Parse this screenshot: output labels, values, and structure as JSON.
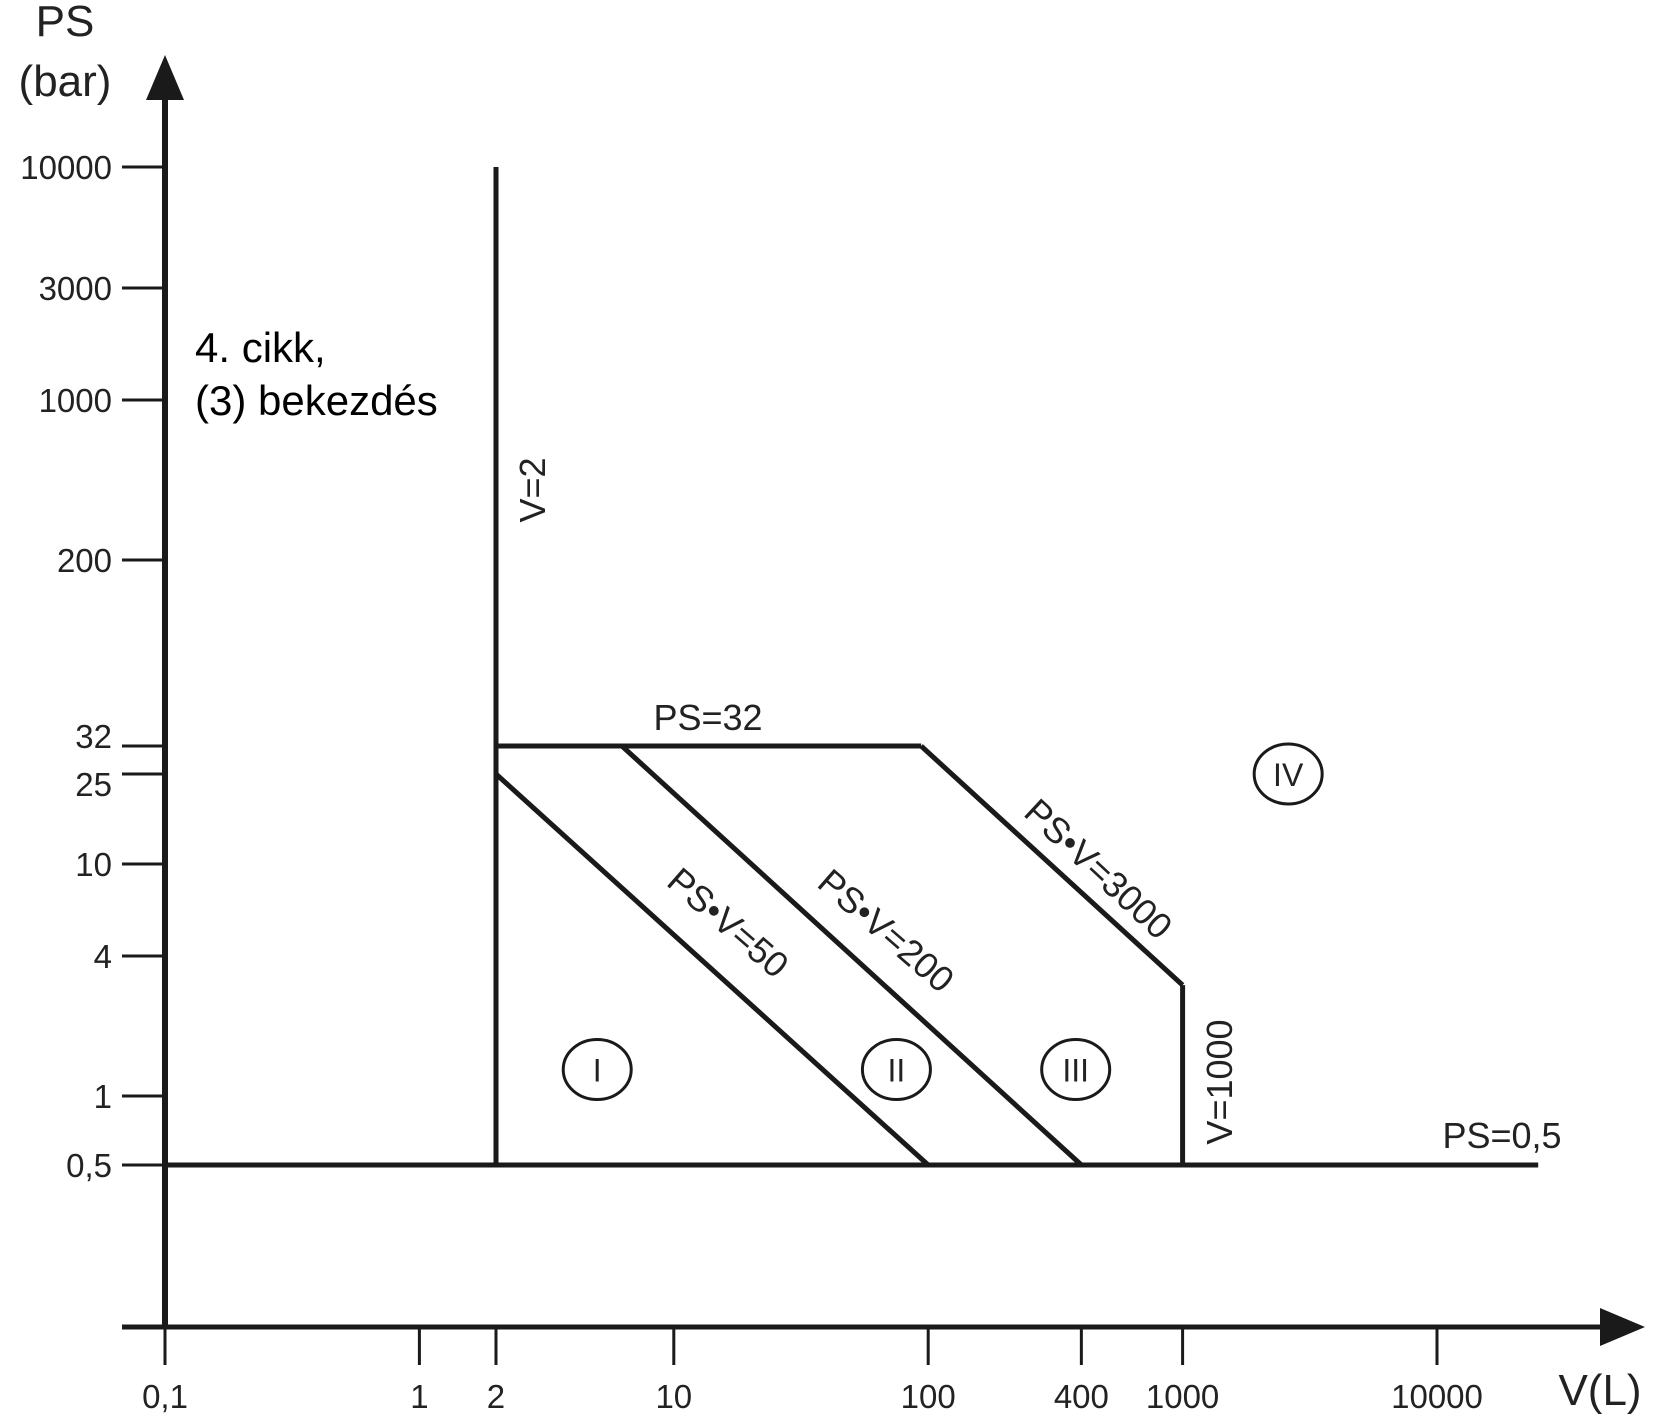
{
  "chart_data": {
    "type": "line",
    "x_scale": "log",
    "y_scale": "log",
    "xlabel": "V(L)",
    "ylabel_line1": "PS",
    "ylabel_line2": "(bar)",
    "x_ticks": [
      {
        "value": 0.1,
        "label": "0,1"
      },
      {
        "value": 1,
        "label": "1"
      },
      {
        "value": 2,
        "label": "2"
      },
      {
        "value": 10,
        "label": "10"
      },
      {
        "value": 100,
        "label": "100"
      },
      {
        "value": 400,
        "label": "400"
      },
      {
        "value": 1000,
        "label": "1000"
      },
      {
        "value": 10000,
        "label": "10000"
      }
    ],
    "y_ticks": [
      {
        "value": 0.5,
        "label": "0,5"
      },
      {
        "value": 1,
        "label": "1"
      },
      {
        "value": 4,
        "label": "4"
      },
      {
        "value": 10,
        "label": "10"
      },
      {
        "value": 25,
        "label": "25"
      },
      {
        "value": 32,
        "label": "32"
      },
      {
        "value": 200,
        "label": "200"
      },
      {
        "value": 1000,
        "label": "1000"
      },
      {
        "value": 3000,
        "label": "3000"
      },
      {
        "value": 10000,
        "label": "10000"
      }
    ],
    "boundaries": [
      {
        "label": "V=2",
        "points": [
          [
            2,
            0.5
          ],
          [
            2,
            10000
          ]
        ]
      },
      {
        "label": "PS=0,5",
        "points": [
          [
            0.1,
            0.5
          ],
          [
            25000,
            0.5
          ]
        ]
      },
      {
        "label": "PS=32",
        "points": [
          [
            2,
            32
          ],
          [
            93.75,
            32
          ]
        ]
      },
      {
        "label": "PS•V=50",
        "points": [
          [
            2,
            25
          ],
          [
            100,
            0.5
          ]
        ]
      },
      {
        "label": "PS•V=200",
        "points": [
          [
            6.25,
            32
          ],
          [
            400,
            0.5
          ]
        ]
      },
      {
        "label": "PS•V=3000",
        "points": [
          [
            93.75,
            32
          ],
          [
            1000,
            3
          ]
        ]
      },
      {
        "label": "V=1000",
        "points": [
          [
            1000,
            3
          ],
          [
            1000,
            0.5
          ]
        ]
      }
    ],
    "regions": [
      {
        "label": "I",
        "x": 5,
        "y": 1.3
      },
      {
        "label": "II",
        "x": 75,
        "y": 1.3
      },
      {
        "label": "III",
        "x": 380,
        "y": 1.3
      },
      {
        "label": "IV",
        "x": 2600,
        "y": 25
      }
    ],
    "note_line1": "4. cikk,",
    "note_line2": "(3) bekezdés"
  }
}
